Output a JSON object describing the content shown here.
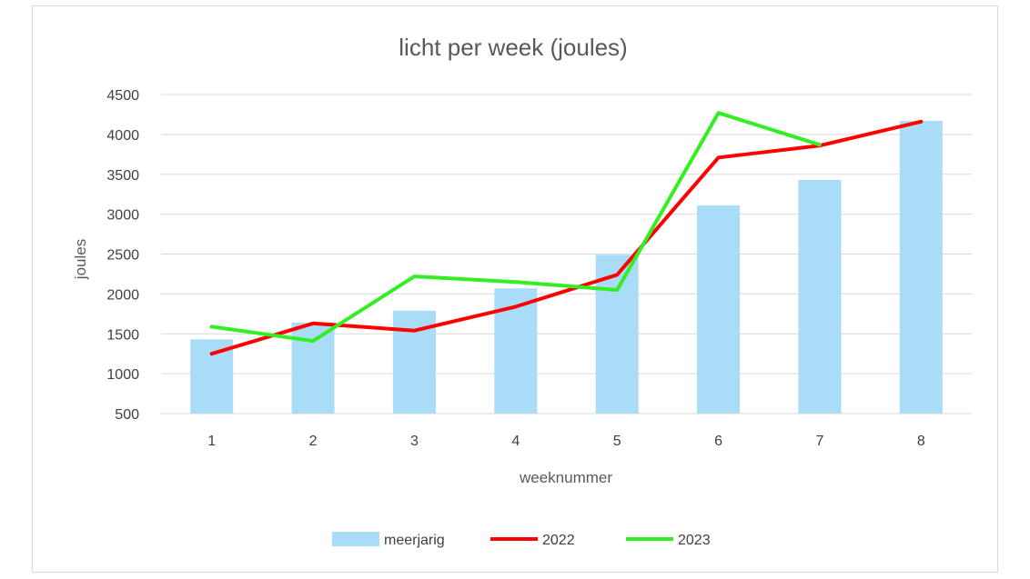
{
  "chart_data": {
    "type": "bar",
    "title": "licht per week (joules)",
    "xlabel": "weeknummer",
    "ylabel": "joules",
    "categories": [
      "1",
      "2",
      "3",
      "4",
      "5",
      "6",
      "7",
      "8"
    ],
    "ylim": [
      500,
      4500
    ],
    "yticks": [
      500,
      1000,
      1500,
      2000,
      2500,
      3000,
      3500,
      4000,
      4500
    ],
    "grid": true,
    "legend_position": "bottom",
    "series": [
      {
        "name": "meerjarig",
        "kind": "bar",
        "color": "#a9dcf7",
        "values": [
          1430,
          1640,
          1790,
          2070,
          2490,
          3110,
          3430,
          4170
        ]
      },
      {
        "name": "2022",
        "kind": "line",
        "color": "#ff0000",
        "values": [
          1250,
          1630,
          1540,
          1840,
          2240,
          3710,
          3860,
          4160
        ]
      },
      {
        "name": "2023",
        "kind": "line",
        "color": "#33ee22",
        "values": [
          1590,
          1410,
          2220,
          2150,
          2050,
          4270,
          3870,
          null
        ]
      }
    ]
  }
}
